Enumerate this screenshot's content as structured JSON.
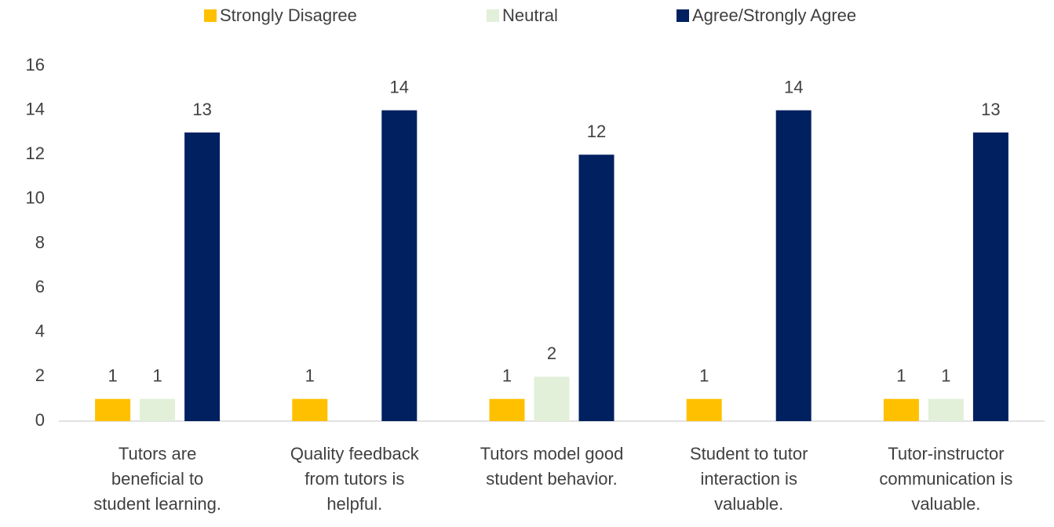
{
  "chart_data": {
    "type": "bar",
    "categories": [
      "Tutors are beneficial to student learning.",
      "Quality feedback from tutors is helpful.",
      "Tutors model good student behavior.",
      "Student to tutor interaction is valuable.",
      "Tutor-instructor communication is valuable."
    ],
    "series": [
      {
        "name": "Strongly Disagree",
        "color": "#ffc000",
        "values": [
          1,
          1,
          1,
          1,
          1
        ]
      },
      {
        "name": "Neutral",
        "color": "#e2efd9",
        "values": [
          1,
          null,
          2,
          null,
          1
        ]
      },
      {
        "name": "Agree/Strongly Agree",
        "color": "#002060",
        "values": [
          13,
          14,
          12,
          14,
          13
        ]
      }
    ],
    "ylim": [
      0,
      16
    ],
    "yticks": [
      0,
      2,
      4,
      6,
      8,
      10,
      12,
      14,
      16
    ],
    "grid": false,
    "legend": "top"
  }
}
